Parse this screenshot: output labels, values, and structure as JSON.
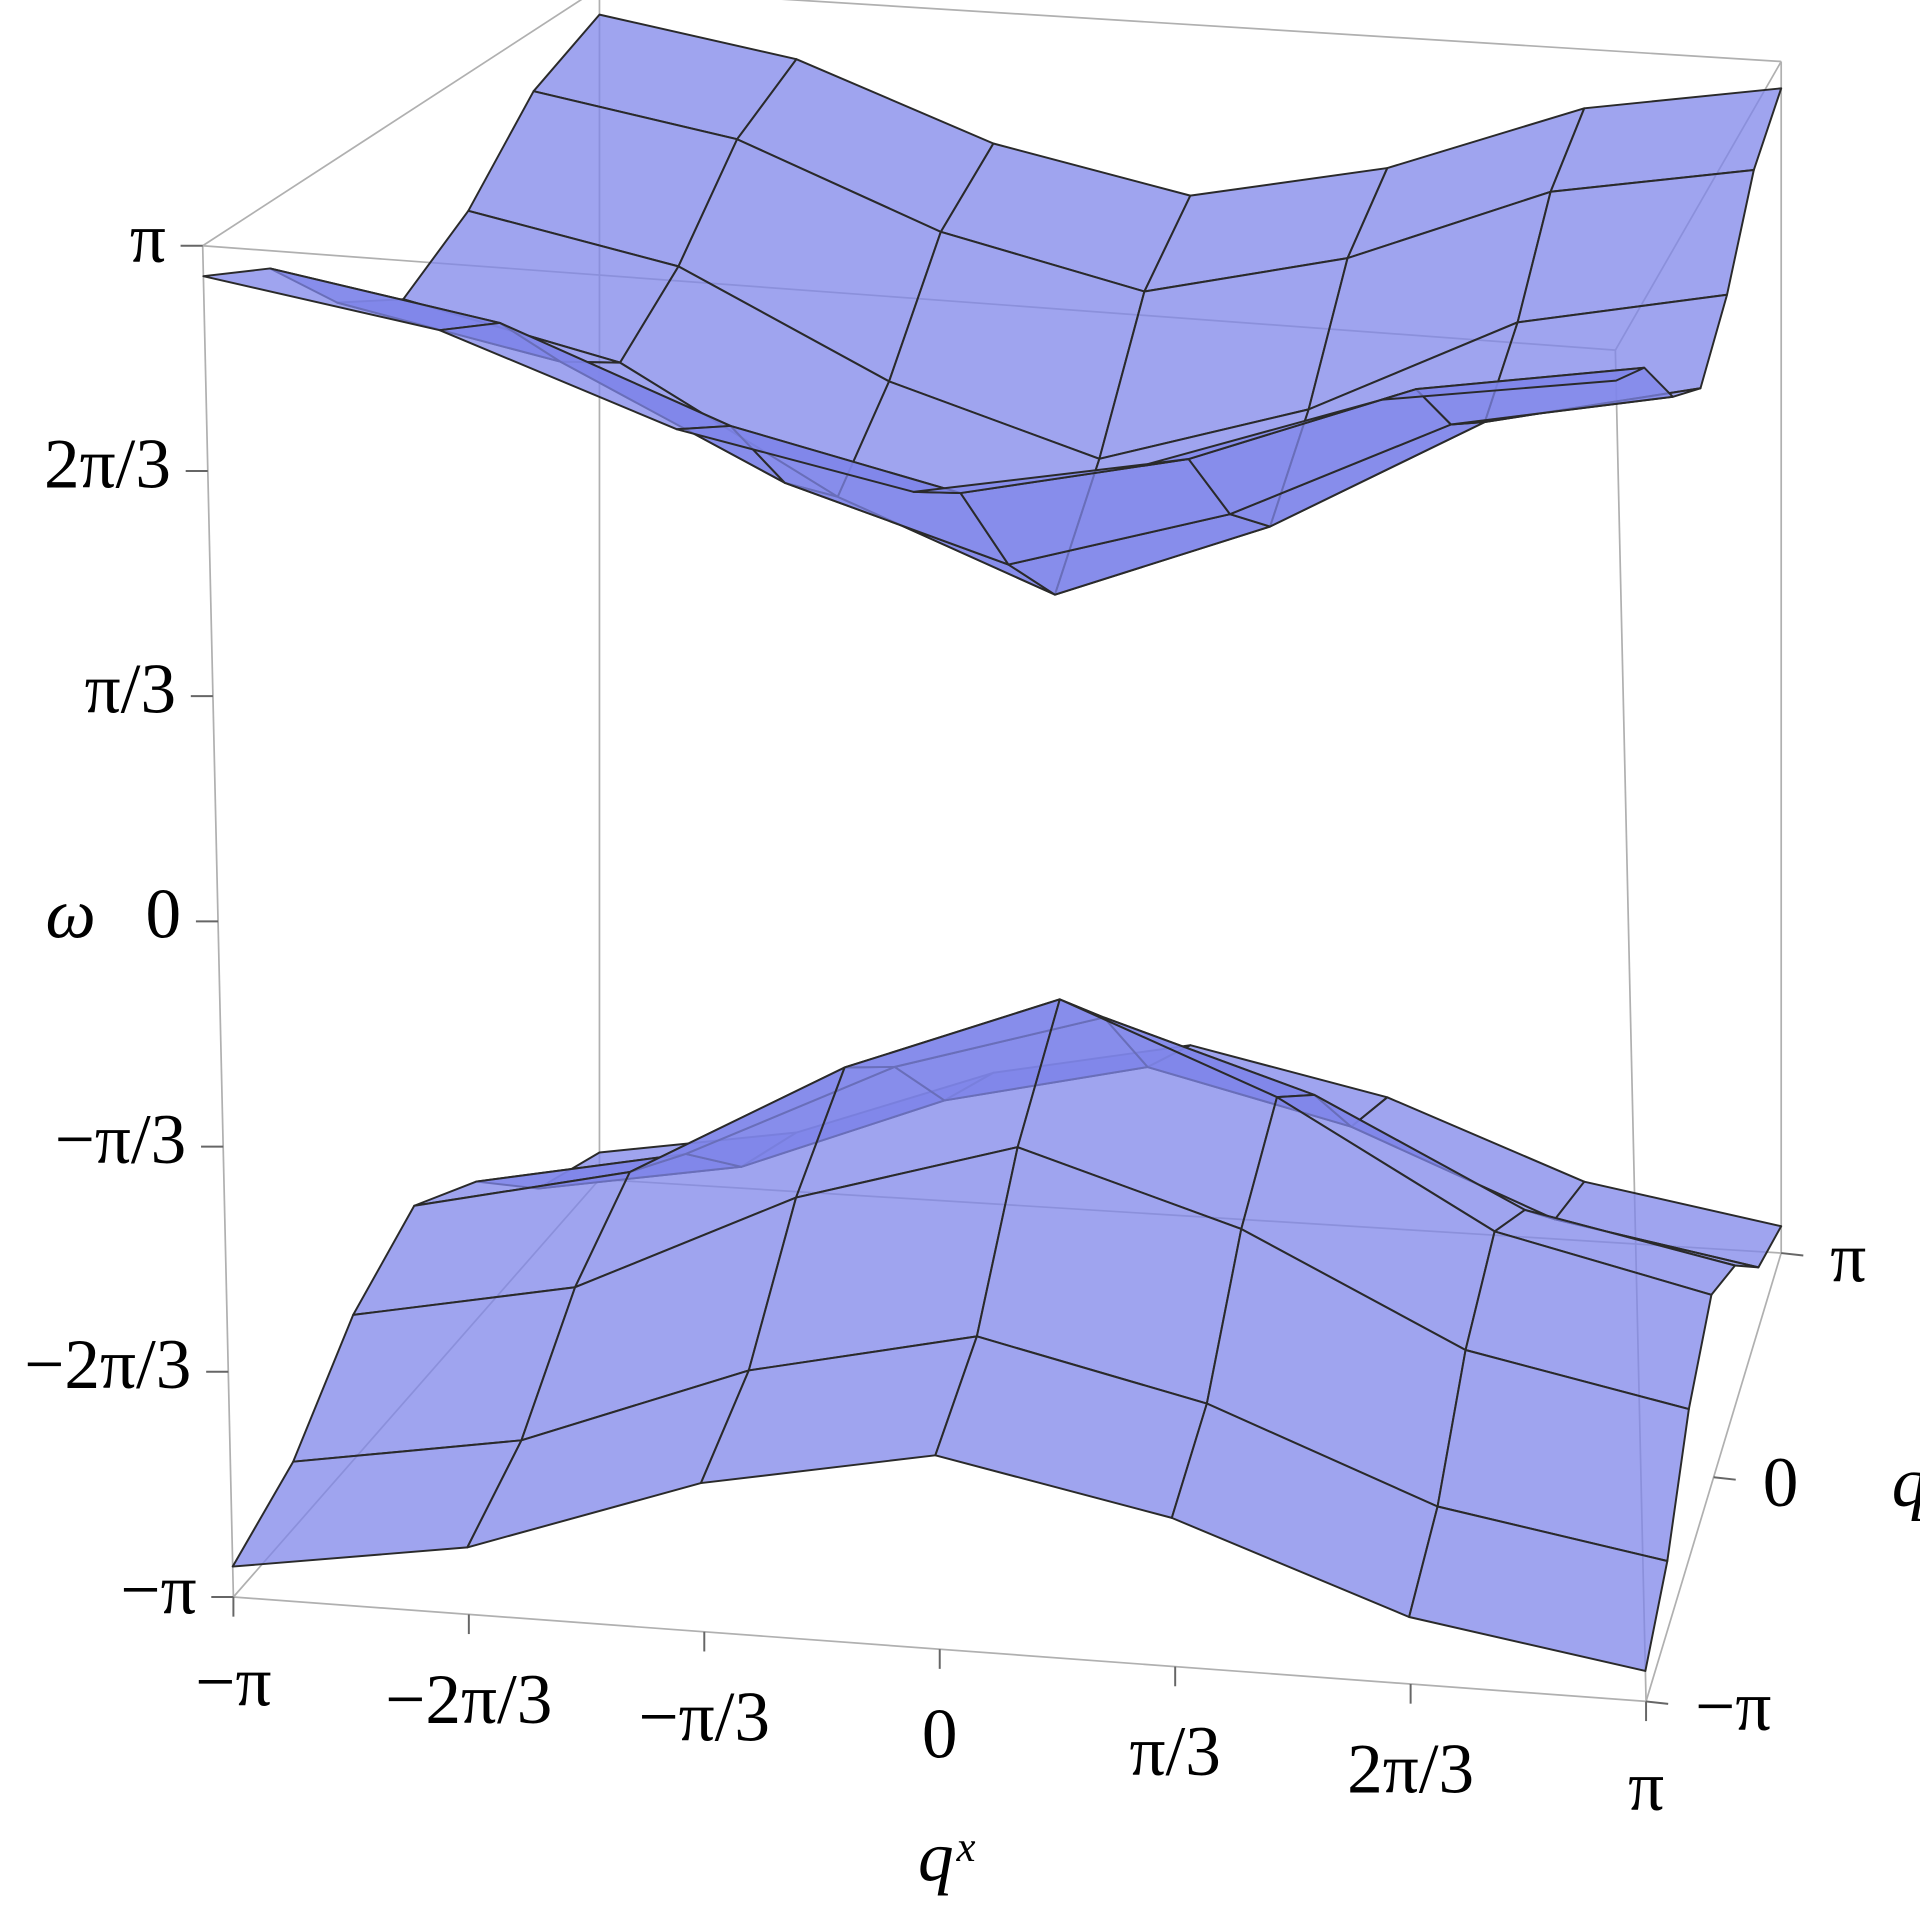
{
  "chart_data": {
    "type": "surface3d",
    "x_label": "qˣ",
    "y_label": "qʸ",
    "z_label": "ω",
    "x": [
      -3.14159,
      -2.0944,
      -1.0472,
      0,
      1.0472,
      2.0944,
      3.14159
    ],
    "y": [
      -3.14159,
      -2.0944,
      -1.0472,
      0,
      1.0472,
      2.0944,
      3.14159
    ],
    "series": [
      {
        "color": "#7f86ea",
        "values": [
          [
            3,
            2.83,
            2.45,
            2.24,
            2.45,
            2.83,
            3
          ],
          [
            2.83,
            2.65,
            2.24,
            2,
            2.24,
            2.65,
            2.83
          ],
          [
            2.45,
            2.24,
            1.73,
            1.41,
            1.73,
            2.24,
            2.45
          ],
          [
            2.24,
            2,
            1.41,
            1,
            1.41,
            2,
            2.24
          ],
          [
            2.45,
            2.24,
            1.73,
            1.41,
            1.73,
            2.24,
            2.45
          ],
          [
            2.83,
            2.65,
            2.24,
            2,
            2.24,
            2.65,
            2.83
          ],
          [
            3,
            2.83,
            2.45,
            2.24,
            2.45,
            2.83,
            3
          ]
        ]
      },
      {
        "color": "#7f86ea",
        "values": [
          [
            -3,
            -2.83,
            -2.45,
            -2.24,
            -2.45,
            -2.83,
            -3
          ],
          [
            -2.83,
            -2.65,
            -2.24,
            -2,
            -2.24,
            -2.65,
            -2.83
          ],
          [
            -2.45,
            -2.24,
            -1.73,
            -1.41,
            -1.73,
            -2.24,
            -2.45
          ],
          [
            -2.24,
            -2,
            -1.41,
            -1,
            -1.41,
            -2,
            -2.24
          ],
          [
            -2.45,
            -2.24,
            -1.73,
            -1.41,
            -1.73,
            -2.24,
            -2.45
          ],
          [
            -2.83,
            -2.65,
            -2.24,
            -2,
            -2.24,
            -2.65,
            -2.83
          ],
          [
            -3,
            -2.83,
            -2.45,
            -2.24,
            -2.45,
            -2.83,
            -3
          ]
        ]
      }
    ],
    "xlim": [
      -3.14159,
      3.14159
    ],
    "ylim": [
      -3.14159,
      3.14159
    ],
    "zlim": [
      -3.14159,
      3.14159
    ],
    "xticks": [
      {
        "value": -3.14159,
        "label": "−π"
      },
      {
        "value": -2.0944,
        "label": "−2π/3"
      },
      {
        "value": -1.0472,
        "label": "−π/3"
      },
      0,
      {
        "value": 1.0472,
        "label": "π/3"
      },
      {
        "value": 2.0944,
        "label": "2π/3"
      },
      {
        "value": 3.14159,
        "label": "π"
      }
    ],
    "yticks": [
      {
        "value": -3.14159,
        "label": "−π"
      },
      0,
      {
        "value": 3.14159,
        "label": "π"
      }
    ],
    "zticks": [
      {
        "value": -3.14159,
        "label": "−π"
      },
      {
        "value": -2.0944,
        "label": "−2π/3"
      },
      {
        "value": -1.0472,
        "label": "−π/3"
      },
      0,
      {
        "value": 1.0472,
        "label": "π/3"
      },
      {
        "value": 2.0944,
        "label": "2π/3"
      },
      {
        "value": 3.14159,
        "label": "π"
      }
    ],
    "opacity": 0.75,
    "mesh_color": "#2a2a2a"
  }
}
